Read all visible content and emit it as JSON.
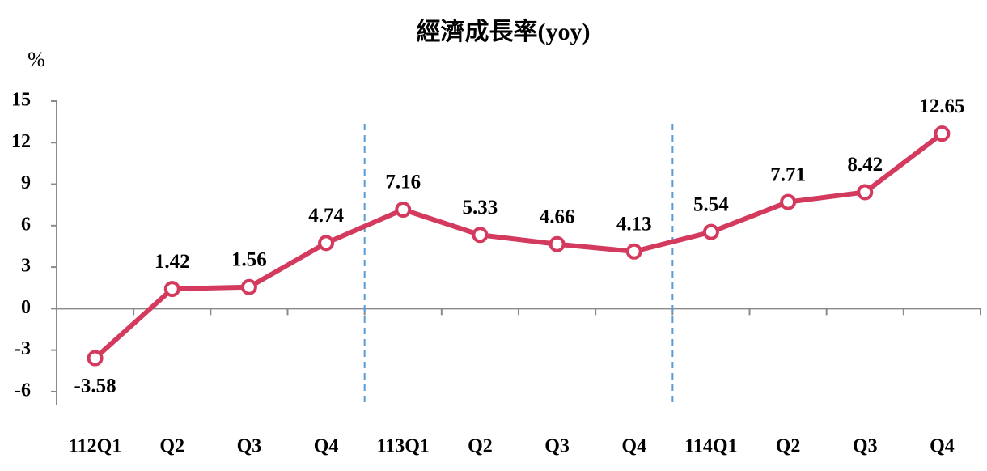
{
  "chart_data": {
    "type": "line",
    "title": "經濟成長率(yoy)",
    "y_label": "%",
    "categories": [
      "112Q1",
      "Q2",
      "Q3",
      "Q4",
      "113Q1",
      "Q2",
      "Q3",
      "Q4",
      "114Q1",
      "Q2",
      "Q3",
      "Q4"
    ],
    "series": [
      {
        "name": "經濟成長率",
        "color": "#d33a5e",
        "values": [
          -3.58,
          1.42,
          1.56,
          4.74,
          7.16,
          5.33,
          4.66,
          4.13,
          5.54,
          7.71,
          8.42,
          12.65
        ]
      }
    ],
    "ylim": [
      -7,
      15
    ],
    "yticks": [
      -6,
      -3,
      0,
      3,
      6,
      9,
      12,
      15
    ],
    "grid": false
  }
}
